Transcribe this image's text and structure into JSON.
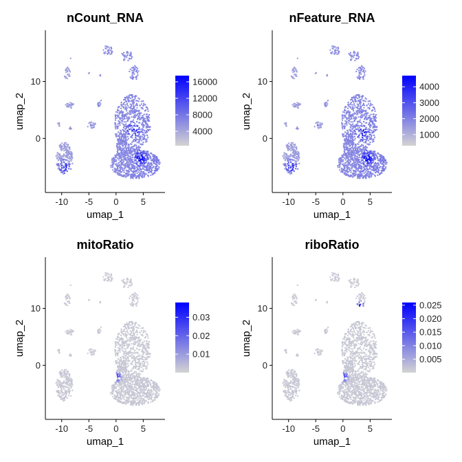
{
  "chart_data": [
    {
      "type": "scatter",
      "title": "nCount_RNA",
      "xlabel": "umap_1",
      "ylabel": "umap_2",
      "xlim": [
        -13,
        9
      ],
      "ylim": [
        -9.5,
        19
      ],
      "x_ticks": [
        "-10",
        "-5",
        "0",
        "5"
      ],
      "y_ticks": [
        "0",
        "10"
      ],
      "legend_ticks": [
        "16000",
        "12000",
        "8000",
        "4000"
      ],
      "legend_values": [
        16000,
        12000,
        8000,
        4000
      ],
      "value_range": [
        500,
        17500
      ],
      "hotspots": [
        {
          "x": 3.2,
          "y": 1.5
        },
        {
          "x": 4.5,
          "y": -3.5
        },
        {
          "x": -2,
          "y": 13
        },
        {
          "x": -9.5,
          "y": -5
        }
      ]
    },
    {
      "type": "scatter",
      "title": "nFeature_RNA",
      "xlabel": "umap_1",
      "ylabel": "umap_2",
      "xlim": [
        -13,
        9
      ],
      "ylim": [
        -9.5,
        19
      ],
      "x_ticks": [
        "-10",
        "-5",
        "0",
        "5"
      ],
      "y_ticks": [
        "0",
        "10"
      ],
      "legend_ticks": [
        "4000",
        "3000",
        "2000",
        "1000"
      ],
      "legend_values": [
        4000,
        3000,
        2000,
        1000
      ],
      "value_range": [
        300,
        4700
      ],
      "hotspots": [
        {
          "x": 3.5,
          "y": 1
        },
        {
          "x": 4.5,
          "y": -3.5
        },
        {
          "x": -2,
          "y": 13
        },
        {
          "x": -9.5,
          "y": -5
        }
      ]
    },
    {
      "type": "scatter",
      "title": "mitoRatio",
      "xlabel": "umap_1",
      "ylabel": "umap_2",
      "xlim": [
        -13,
        9
      ],
      "ylim": [
        -9.5,
        19
      ],
      "x_ticks": [
        "-10",
        "-5",
        "0",
        "5"
      ],
      "y_ticks": [
        "0",
        "10"
      ],
      "legend_ticks": [
        "0.03",
        "0.02",
        "0.01"
      ],
      "legend_values": [
        0.03,
        0.02,
        0.01
      ],
      "value_range": [
        0,
        0.038
      ],
      "hotspots": [
        {
          "x": 0,
          "y": -2
        }
      ]
    },
    {
      "type": "scatter",
      "title": "riboRatio",
      "xlabel": "umap_1",
      "ylabel": "umap_2",
      "xlim": [
        -13,
        9
      ],
      "ylim": [
        -9.5,
        19
      ],
      "x_ticks": [
        "-10",
        "-5",
        "0",
        "5"
      ],
      "y_ticks": [
        "0",
        "10"
      ],
      "legend_ticks": [
        "0.025",
        "0.020",
        "0.015",
        "0.010",
        "0.005"
      ],
      "legend_values": [
        0.025,
        0.02,
        0.015,
        0.01,
        0.005
      ],
      "value_range": [
        0,
        0.026
      ],
      "hotspots": [
        {
          "x": 0,
          "y": -2
        },
        {
          "x": 3,
          "y": 10.5
        }
      ]
    }
  ],
  "colors": {
    "low": "#d3d3d3",
    "high": "#0000ff",
    "axis": "#000000"
  },
  "clusters": [
    {
      "cx": 3,
      "cy": 2.5,
      "rx": 3.3,
      "ry": 5.2,
      "n": 650
    },
    {
      "cx": 3.5,
      "cy": -4.5,
      "rx": 4.6,
      "ry": 2.6,
      "n": 750
    },
    {
      "cx": 1.2,
      "cy": -1.5,
      "rx": 1.2,
      "ry": 2,
      "n": 140
    },
    {
      "cx": -9.5,
      "cy": -3.5,
      "rx": 1.6,
      "ry": 2.8,
      "n": 230
    },
    {
      "cx": -1.5,
      "cy": 15.5,
      "rx": 0.9,
      "ry": 1,
      "n": 35
    },
    {
      "cx": 2,
      "cy": 14.5,
      "rx": 1.1,
      "ry": 0.9,
      "n": 35
    },
    {
      "cx": 3.3,
      "cy": 11.5,
      "rx": 0.9,
      "ry": 1.3,
      "n": 40
    },
    {
      "cx": -9,
      "cy": 11.5,
      "rx": 0.6,
      "ry": 1,
      "n": 28
    },
    {
      "cx": -8.5,
      "cy": 5.8,
      "rx": 0.8,
      "ry": 0.5,
      "n": 24
    },
    {
      "cx": -3,
      "cy": 6.2,
      "rx": 0.4,
      "ry": 0.7,
      "n": 16
    },
    {
      "cx": -4.5,
      "cy": 2.3,
      "rx": 0.8,
      "ry": 0.6,
      "n": 22
    },
    {
      "cx": -10.5,
      "cy": 2.5,
      "rx": 0.3,
      "ry": 0.4,
      "n": 8
    },
    {
      "cx": -8.5,
      "cy": 1.7,
      "rx": 0.3,
      "ry": 0.3,
      "n": 6
    },
    {
      "cx": -5,
      "cy": 11.5,
      "rx": 0.1,
      "ry": 0.1,
      "n": 2
    },
    {
      "cx": -8.3,
      "cy": 14,
      "rx": 0.1,
      "ry": 0.1,
      "n": 1
    },
    {
      "cx": -2.8,
      "cy": 11,
      "rx": 0.2,
      "ry": 0.2,
      "n": 3
    }
  ]
}
